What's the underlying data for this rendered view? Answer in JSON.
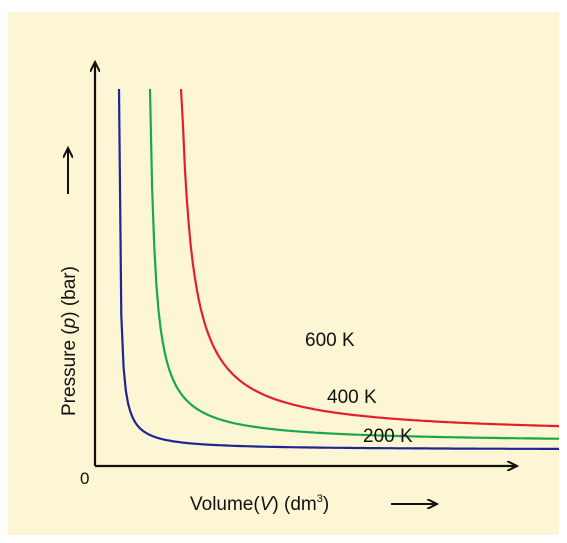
{
  "chart_data": {
    "type": "line",
    "title": "",
    "xlabel": "Volume(",
    "xlabel_var": "V",
    "xlabel_unit": ") (dm",
    "xlabel_sup": "3",
    "xlabel_close": ")",
    "ylabel": "Pressure (",
    "ylabel_var": "p",
    "ylabel_unit": ") (bar)",
    "origin_label": "0",
    "background": "#fdf6d5",
    "grid": false,
    "legend": "none",
    "series": [
      {
        "name": "200 K",
        "color": "#1f2591",
        "constant": 1
      },
      {
        "name": "400 K",
        "color": "#18a84a",
        "constant": 2
      },
      {
        "name": "600 K",
        "color": "#e3202a",
        "constant": 3
      }
    ]
  }
}
